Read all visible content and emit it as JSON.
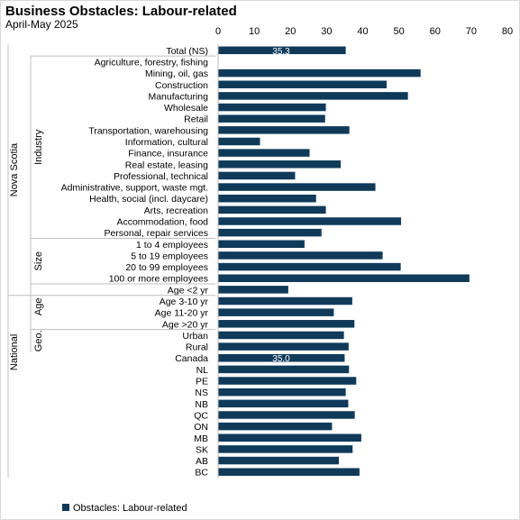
{
  "title": "Business Obstacles: Labour-related",
  "subtitle": "April-May 2025",
  "chart_data": {
    "type": "bar",
    "orientation": "horizontal",
    "bar_color": "#0f3a5a",
    "xlim": [
      0,
      80
    ],
    "xticks": [
      0,
      10,
      20,
      30,
      40,
      50,
      60,
      70,
      80
    ],
    "x_axis_position": "top",
    "grid": false,
    "legend_position": "bottom-left",
    "series": [
      {
        "name": "Obstacles: Labour-related"
      }
    ],
    "groups": [
      {
        "label": "Nova Scotia",
        "start": 0,
        "end": 21
      },
      {
        "label": "National",
        "start": 22,
        "end": 31
      }
    ],
    "subgroups": [
      {
        "label": "Industry",
        "start": 1,
        "end": 16
      },
      {
        "label": "Size",
        "start": 17,
        "end": 20
      },
      {
        "label": "Age",
        "start": 21,
        "end": 24
      },
      {
        "label": "Geo.",
        "start": 25,
        "end": 26
      }
    ],
    "categories": [
      "Total (NS)",
      "Agriculture, forestry, fishing",
      "Mining, oil, gas",
      "Construction",
      "Manufacturing",
      "Wholesale",
      "Retail",
      "Transportation, warehousing",
      "Information, cultural",
      "Finance, insurance",
      "Real estate, leasing",
      "Professional, technical",
      "Administrative, support, waste mgt.",
      "Health, social (incl. daycare)",
      "Arts, recreation",
      "Accommodation, food",
      "Personal, repair services",
      "1 to 4 employees",
      "5 to 19 employees",
      "20 to 99 employees",
      "100 or more employees",
      "Age <2 yr",
      "Age 3-10 yr",
      "Age 11-20 yr",
      "Age >20 yr",
      "Urban",
      "Rural",
      "Canada",
      "NL",
      "PE",
      "NS",
      "NB",
      "QC",
      "ON",
      "MB",
      "SK",
      "AB",
      "BC"
    ],
    "values": [
      35.3,
      0,
      56.0,
      46.6,
      52.5,
      29.8,
      29.6,
      36.3,
      11.6,
      25.3,
      33.9,
      21.3,
      43.5,
      27.1,
      29.8,
      50.6,
      28.6,
      23.9,
      45.5,
      50.5,
      69.5,
      19.4,
      37.1,
      32.0,
      37.7,
      34.8,
      36.1,
      35.0,
      36.2,
      38.2,
      35.3,
      36.0,
      37.8,
      31.5,
      39.6,
      37.2,
      33.4,
      39.1
    ],
    "data_labels": [
      {
        "index": 0,
        "text": "35.3"
      },
      {
        "index": 27,
        "text": "35.0"
      }
    ]
  }
}
